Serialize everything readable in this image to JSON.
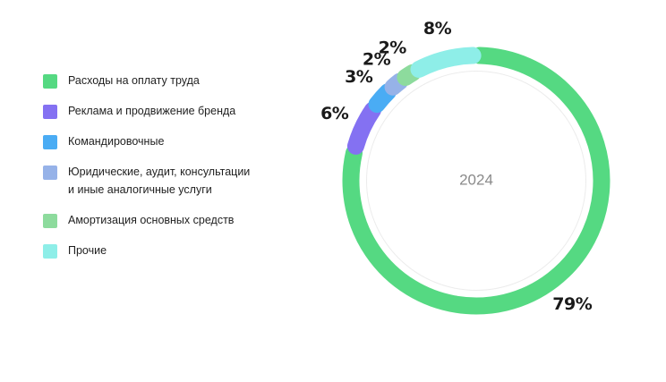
{
  "chart_data": {
    "type": "pie",
    "variant": "donut",
    "center_label": "2024",
    "slices": [
      {
        "label": "Расходы на оплату труда",
        "value": 79,
        "value_label": "79%",
        "color": "#55d982"
      },
      {
        "label": "Реклама и продвижение бренда",
        "value": 6,
        "value_label": "6%",
        "color": "#8471f2"
      },
      {
        "label": "Командировочные",
        "value": 3,
        "value_label": "3%",
        "color": "#4aacf4"
      },
      {
        "label": "Юридические, аудит, консультации\nи иные аналогичные услуги",
        "value": 2,
        "value_label": "2%",
        "color": "#96b2e8"
      },
      {
        "label": "Амортизация основных средств",
        "value": 2,
        "value_label": "2%",
        "color": "#8ddb9d"
      },
      {
        "label": "Прочие",
        "value": 8,
        "value_label": "8%",
        "color": "#8eeee8"
      }
    ],
    "legend_position": "left"
  }
}
